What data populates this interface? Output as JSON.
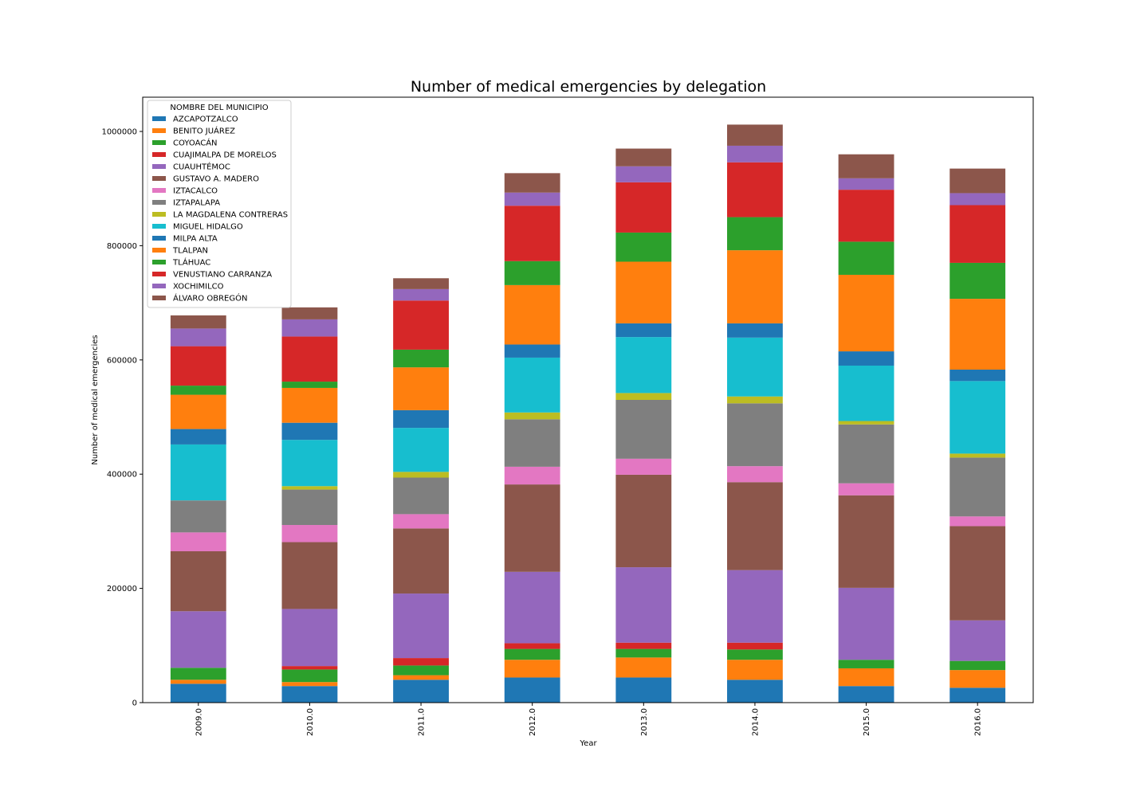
{
  "chart_data": {
    "type": "bar",
    "stacked": true,
    "title": "Number of medical emergencies by delegation",
    "xlabel": "Year",
    "ylabel": "Number of medical emergencies",
    "categories": [
      "2009.0",
      "2010.0",
      "2011.0",
      "2012.0",
      "2013.0",
      "2014.0",
      "2015.0",
      "2016.0"
    ],
    "ylim": [
      0,
      1060000
    ],
    "yticks": [
      0,
      200000,
      400000,
      600000,
      800000,
      1000000
    ],
    "ytick_labels": [
      "0",
      "200000",
      "400000",
      "600000",
      "800000",
      "1000000"
    ],
    "grid": false,
    "legend": {
      "title": "NOMBRE DEL MUNICIPIO",
      "placement": "upper-left"
    },
    "series": [
      {
        "name": "AZCAPOTZALCO",
        "color": "#1f77b4",
        "values": [
          33000,
          29000,
          40000,
          44000,
          44000,
          40000,
          29000,
          26000
        ]
      },
      {
        "name": "BENITO JUÁREZ",
        "color": "#ff7f0e",
        "values": [
          7000,
          7000,
          8000,
          31000,
          35000,
          35000,
          31000,
          31000
        ]
      },
      {
        "name": "COYOACÁN",
        "color": "#2ca02c",
        "values": [
          21000,
          22000,
          17000,
          19000,
          15000,
          18000,
          15000,
          16000
        ]
      },
      {
        "name": "CUAJIMALPA DE MORELOS",
        "color": "#d62728",
        "values": [
          0,
          6000,
          13000,
          10000,
          11000,
          12000,
          0,
          0
        ]
      },
      {
        "name": "CUAUHTÉMOC",
        "color": "#9467bd",
        "values": [
          99000,
          100000,
          113000,
          125000,
          132000,
          127000,
          126000,
          71000
        ]
      },
      {
        "name": "GUSTAVO A. MADERO",
        "color": "#8c564b",
        "values": [
          105000,
          117000,
          114000,
          153000,
          162000,
          154000,
          162000,
          165000
        ]
      },
      {
        "name": "IZTACALCO",
        "color": "#e377c2",
        "values": [
          33000,
          30000,
          25000,
          31000,
          28000,
          28000,
          21000,
          17000
        ]
      },
      {
        "name": "IZTAPALAPA",
        "color": "#7f7f7f",
        "values": [
          56000,
          62000,
          64000,
          83000,
          103000,
          110000,
          103000,
          103000
        ]
      },
      {
        "name": "LA MAGDALENA CONTRERAS",
        "color": "#bcbd22",
        "values": [
          0,
          6000,
          10000,
          12000,
          12000,
          12000,
          6000,
          7000
        ]
      },
      {
        "name": "MIGUEL HIDALGO",
        "color": "#17becf",
        "values": [
          98000,
          81000,
          77000,
          96000,
          98000,
          103000,
          97000,
          127000
        ]
      },
      {
        "name": "MILPA ALTA",
        "color": "#1f77b4",
        "values": [
          27000,
          30000,
          31000,
          23000,
          24000,
          25000,
          25000,
          20000
        ]
      },
      {
        "name": "TLALPAN",
        "color": "#ff7f0e",
        "values": [
          60000,
          61000,
          75000,
          104000,
          108000,
          128000,
          134000,
          124000
        ]
      },
      {
        "name": "TLÁHUAC",
        "color": "#2ca02c",
        "values": [
          16000,
          11000,
          31000,
          42000,
          51000,
          58000,
          58000,
          63000
        ]
      },
      {
        "name": "VENUSTIANO CARRANZA",
        "color": "#d62728",
        "values": [
          69000,
          79000,
          86000,
          97000,
          88000,
          96000,
          91000,
          101000
        ]
      },
      {
        "name": "XOCHIMILCO",
        "color": "#9467bd",
        "values": [
          31000,
          30000,
          20000,
          23000,
          28000,
          29000,
          20000,
          21000
        ]
      },
      {
        "name": "ÁLVARO OBREGÓN",
        "color": "#8c564b",
        "values": [
          23000,
          21000,
          19000,
          34000,
          31000,
          37000,
          42000,
          43000
        ]
      }
    ]
  }
}
